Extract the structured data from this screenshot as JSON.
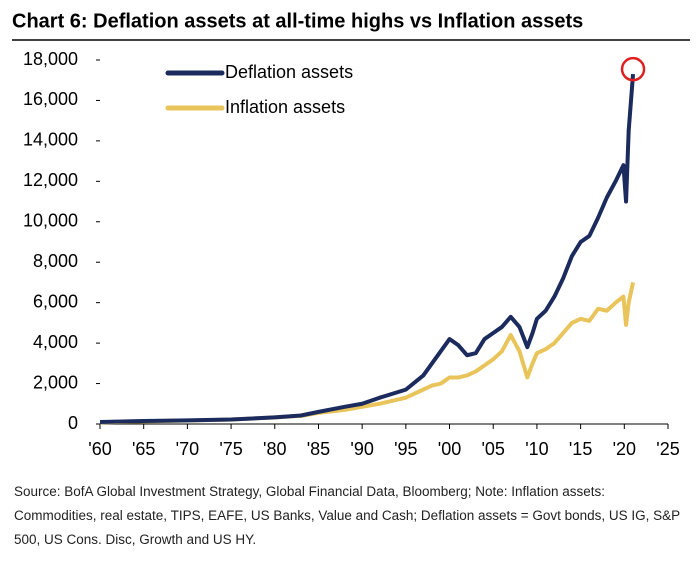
{
  "chart_data": {
    "type": "line",
    "title": "Chart 6: Deflation assets at all-time highs vs Inflation assets",
    "note": "Source: BofA Global Investment Strategy, Global Financial Data, Bloomberg; Note: Inflation assets: Commodities, real estate, TIPS, EAFE, US Banks, Value and Cash; Deflation assets = Govt bonds, US IG, S&P 500, US Cons. Disc, Growth and US HY.",
    "x": [
      1960,
      1965,
      1970,
      1975,
      1980,
      1983,
      1985,
      1988,
      1990,
      1992,
      1995,
      1997,
      1998,
      1999,
      2000,
      2001,
      2002,
      2003,
      2004,
      2005,
      2006,
      2007,
      2008,
      2008.9,
      2009.5,
      2010,
      2011,
      2012,
      2013,
      2014,
      2015,
      2016,
      2017,
      2018,
      2019,
      2019.9,
      2020.2,
      2020.5,
      2021
    ],
    "series": [
      {
        "name": "Deflation assets",
        "color": "#1c2b5e",
        "values": [
          100,
          150,
          180,
          220,
          330,
          420,
          600,
          850,
          1000,
          1300,
          1700,
          2400,
          3000,
          3600,
          4200,
          3900,
          3400,
          3500,
          4200,
          4500,
          4800,
          5300,
          4800,
          3800,
          4500,
          5200,
          5600,
          6300,
          7200,
          8300,
          9000,
          9300,
          10200,
          11200,
          12000,
          12800,
          11000,
          14500,
          17300
        ]
      },
      {
        "name": "Inflation assets",
        "color": "#e8c45a",
        "values": [
          80,
          130,
          170,
          220,
          330,
          400,
          550,
          700,
          850,
          1000,
          1300,
          1700,
          1900,
          2000,
          2300,
          2300,
          2400,
          2600,
          2900,
          3200,
          3600,
          4400,
          3600,
          2300,
          3000,
          3500,
          3700,
          4000,
          4500,
          5000,
          5200,
          5100,
          5700,
          5600,
          6000,
          6300,
          4900,
          6000,
          7000
        ]
      }
    ],
    "xlim": [
      1960,
      2025
    ],
    "xticks": [
      {
        "value": 1960,
        "label": "'60"
      },
      {
        "value": 1965,
        "label": "'65"
      },
      {
        "value": 1970,
        "label": "'70"
      },
      {
        "value": 1975,
        "label": "'75"
      },
      {
        "value": 1980,
        "label": "'80"
      },
      {
        "value": 1985,
        "label": "'85"
      },
      {
        "value": 1990,
        "label": "'90"
      },
      {
        "value": 1995,
        "label": "'95"
      },
      {
        "value": 2000,
        "label": "'00"
      },
      {
        "value": 2005,
        "label": "'05"
      },
      {
        "value": 2010,
        "label": "'10"
      },
      {
        "value": 2015,
        "label": "'15"
      },
      {
        "value": 2020,
        "label": "'20"
      },
      {
        "value": 2025,
        "label": "'25"
      }
    ],
    "ylim": [
      0,
      18000
    ],
    "yticks": [
      0,
      {
        "value": 2000,
        "label": "2,000"
      },
      {
        "value": 4000,
        "label": "4,000"
      },
      {
        "value": 6000,
        "label": "6,000"
      },
      {
        "value": 8000,
        "label": "8,000"
      },
      {
        "value": 10000,
        "label": "10,000"
      },
      {
        "value": 12000,
        "label": "12,000"
      },
      {
        "value": 14000,
        "label": "14,000"
      },
      {
        "value": 16000,
        "label": "16,000"
      },
      {
        "value": 18000,
        "label": "18,000"
      }
    ],
    "grid": false
  }
}
